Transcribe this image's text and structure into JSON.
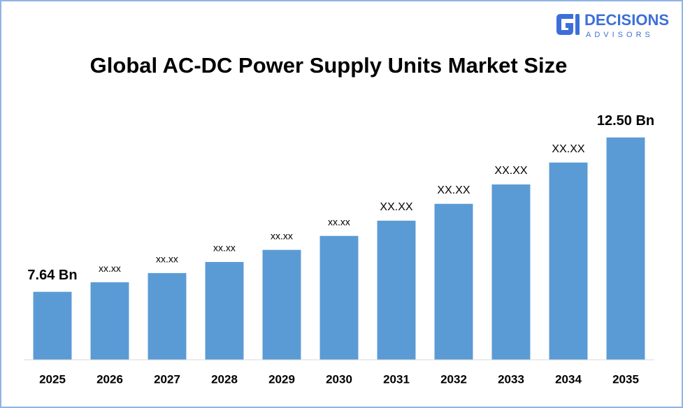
{
  "logo": {
    "name": "DECISIONS",
    "tagline": "ADVISORS"
  },
  "chart_data": {
    "type": "bar",
    "title": "Global AC-DC Power Supply Units Market Size",
    "categories": [
      "2025",
      "2026",
      "2027",
      "2028",
      "2029",
      "2030",
      "2031",
      "2032",
      "2033",
      "2034",
      "2035"
    ],
    "values": [
      7.64,
      7.94,
      8.23,
      8.58,
      8.96,
      9.4,
      9.88,
      10.41,
      11.02,
      11.71,
      12.5
    ],
    "value_labels": [
      "7.64 Bn",
      "xx.xx",
      "xx.xx",
      "xx.xx",
      "xx.xx",
      "xx.xx",
      "XX.XX",
      "XX.XX",
      "XX.XX",
      "XX.XX",
      "12.50 Bn"
    ],
    "color": "#5b9bd5",
    "ylim": [
      5.5,
      13
    ]
  }
}
